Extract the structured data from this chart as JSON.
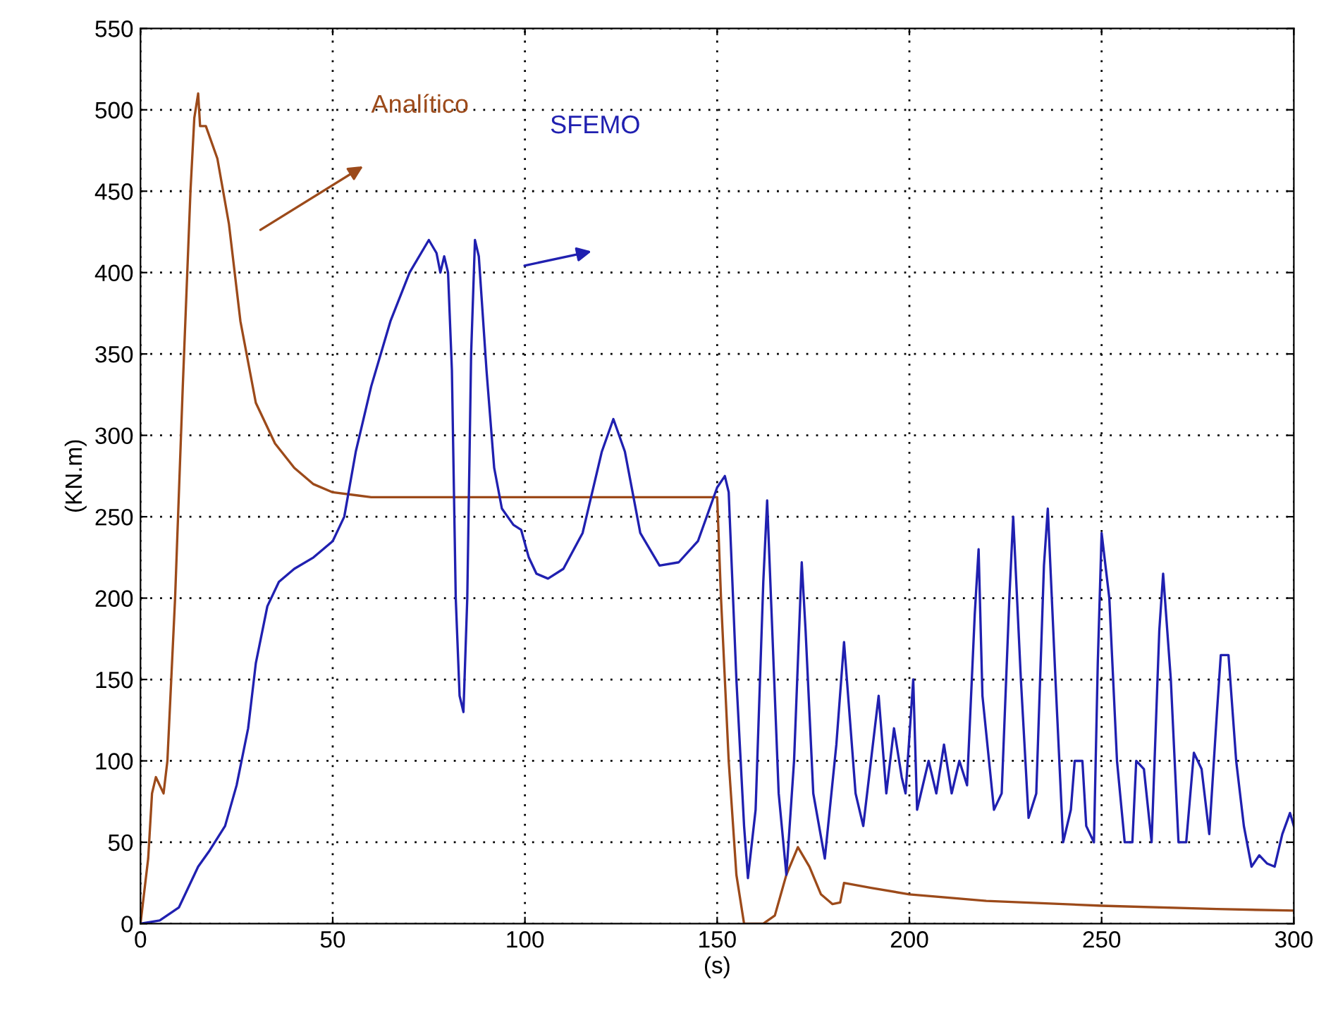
{
  "chart_data": {
    "type": "line",
    "xlabel": "(s)",
    "ylabel": "(KN.m)",
    "xlim": [
      0,
      300
    ],
    "ylim": [
      0,
      550
    ],
    "xticks": [
      0,
      50,
      100,
      150,
      200,
      250,
      300
    ],
    "yticks": [
      0,
      50,
      100,
      150,
      200,
      250,
      300,
      350,
      400,
      450,
      500,
      550
    ],
    "grid": true,
    "legend": false,
    "line_style": "solid",
    "marker": "none",
    "series": [
      {
        "color": "#9c4a1a",
        "x": [
          0,
          2,
          3,
          4,
          6,
          7,
          9,
          11,
          13,
          14,
          15,
          15.5,
          17,
          20,
          23,
          26,
          30,
          35,
          40,
          45,
          50,
          60,
          80,
          100,
          130,
          150,
          151,
          153,
          155,
          157,
          162,
          165,
          168,
          171,
          174,
          177,
          180,
          182,
          183,
          190,
          200,
          220,
          250,
          280,
          300
        ],
        "values": [
          0,
          40,
          80,
          90,
          80,
          100,
          200,
          330,
          450,
          495,
          510,
          490,
          490,
          470,
          430,
          370,
          320,
          295,
          280,
          270,
          265,
          262,
          262,
          262,
          262,
          262,
          200,
          100,
          30,
          0,
          0,
          5,
          30,
          47,
          35,
          18,
          12,
          13,
          25,
          22,
          18,
          14,
          11,
          9,
          8
        ]
      },
      {
        "color": "#2020b0",
        "x": [
          0,
          5,
          10,
          15,
          18,
          22,
          25,
          28,
          30,
          33,
          36,
          40,
          45,
          50,
          53,
          56,
          60,
          65,
          70,
          75,
          77,
          78,
          79,
          80,
          81,
          82,
          83,
          84,
          85,
          86,
          87,
          88,
          90,
          92,
          94,
          97,
          99,
          101,
          103,
          106,
          110,
          115,
          120,
          123,
          126,
          130,
          135,
          140,
          145,
          150,
          152,
          153,
          155,
          157,
          158,
          160,
          162,
          163,
          164,
          166,
          168,
          170,
          172,
          173,
          175,
          178,
          181,
          183,
          186,
          188,
          190,
          192,
          194,
          196,
          198,
          199,
          201,
          202,
          205,
          207,
          209,
          211,
          213,
          215,
          217,
          218,
          219,
          222,
          224,
          226,
          227,
          229,
          231,
          233,
          235,
          236,
          238,
          240,
          242,
          243,
          245,
          246,
          248,
          249,
          250,
          252,
          254,
          256,
          258,
          259,
          261,
          263,
          265,
          266,
          268,
          270,
          272,
          274,
          276,
          278,
          280,
          281,
          283,
          285,
          287,
          289,
          291,
          293,
          295,
          297,
          299,
          300
        ],
        "values": [
          0,
          2,
          10,
          35,
          45,
          60,
          85,
          120,
          160,
          195,
          210,
          218,
          225,
          235,
          250,
          290,
          330,
          370,
          400,
          420,
          412,
          400,
          410,
          400,
          340,
          200,
          140,
          130,
          200,
          350,
          420,
          410,
          340,
          280,
          255,
          245,
          242,
          225,
          215,
          212,
          218,
          240,
          290,
          310,
          290,
          240,
          220,
          222,
          235,
          268,
          275,
          265,
          150,
          60,
          28,
          70,
          210,
          260,
          200,
          80,
          30,
          100,
          222,
          180,
          80,
          40,
          110,
          173,
          80,
          60,
          100,
          140,
          80,
          120,
          90,
          80,
          150,
          70,
          100,
          80,
          110,
          80,
          100,
          85,
          190,
          230,
          140,
          70,
          80,
          200,
          250,
          150,
          65,
          80,
          220,
          255,
          150,
          50,
          70,
          100,
          100,
          60,
          50,
          160,
          240,
          200,
          100,
          50,
          50,
          100,
          95,
          50,
          180,
          215,
          150,
          50,
          50,
          105,
          95,
          55,
          130,
          165,
          165,
          100,
          60,
          35,
          42,
          37,
          35,
          55,
          68,
          60
        ]
      }
    ],
    "annotations": [
      "Analítico",
      "SFEMO"
    ]
  }
}
